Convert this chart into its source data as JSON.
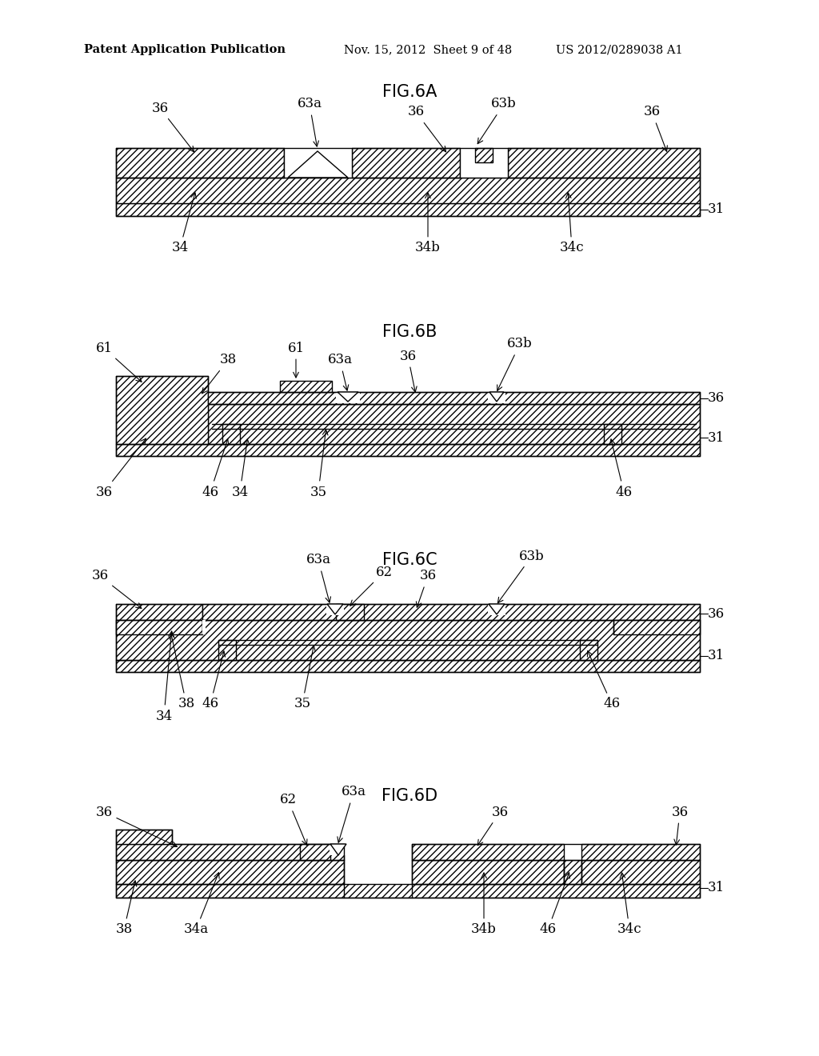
{
  "header_left": "Patent Application Publication",
  "header_mid": "Nov. 15, 2012  Sheet 9 of 48",
  "header_right": "US 2012/0289038 A1",
  "bg_color": "#ffffff",
  "lc": "#000000",
  "hatch": "////",
  "lw": 1.0,
  "fig_fs": 15,
  "label_fs": 12,
  "header_fs": 10.5
}
